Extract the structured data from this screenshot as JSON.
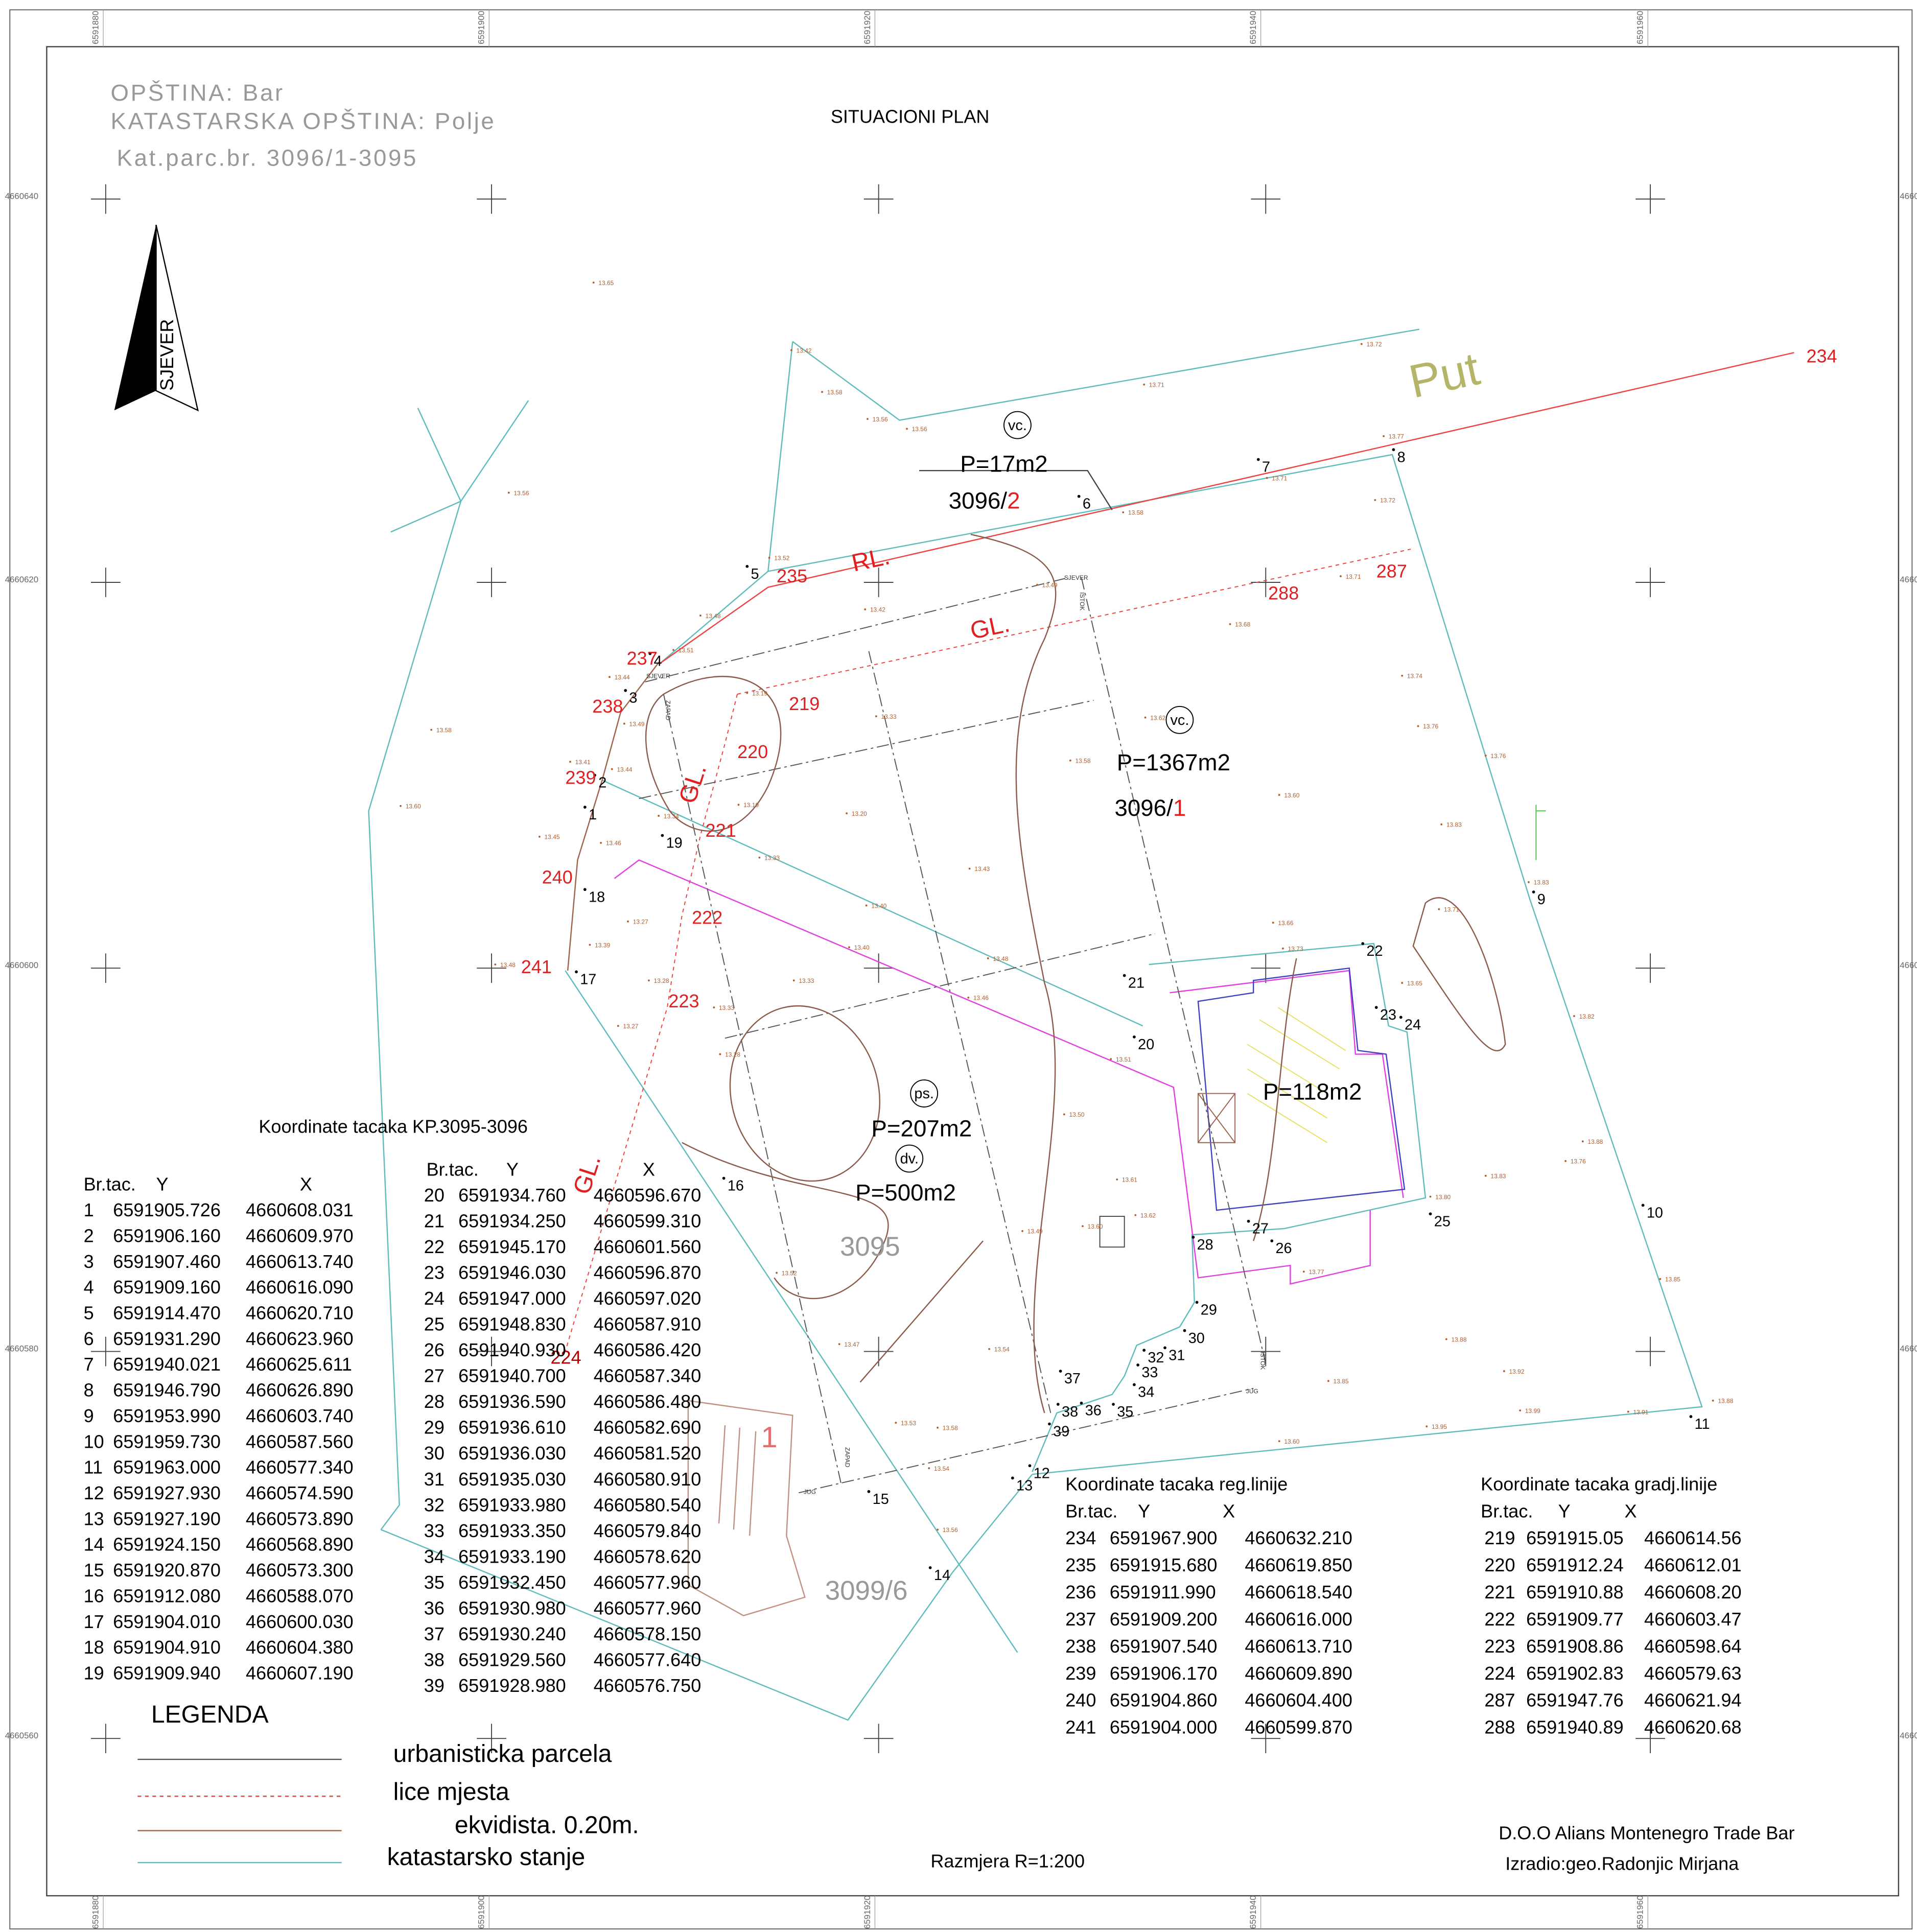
{
  "header": {
    "municipality": "OPŠTINA: Bar",
    "cadastral_municipality": "KATASTARSKA OPŠTINA: Polje",
    "parcel": "Kat.parc.br. 3096/1-3095",
    "title": "SITUACIONI PLAN"
  },
  "north_arrow": "SJEVER",
  "grid": {
    "eastings": [
      "6591880",
      "6591900",
      "6591920",
      "6591940",
      "6591960"
    ],
    "northings": [
      "4660640",
      "4660620",
      "4660600",
      "4660580",
      "4660560"
    ]
  },
  "map": {
    "labels": [
      "Put",
      "vc.",
      "P=17m2",
      "vc.",
      "P=1367m2",
      "ps.",
      "P=207m2",
      "dv.",
      "P=500m2",
      "P=118m2",
      "3095",
      "3099/6",
      "1",
      "RL.",
      "GL.",
      "GL.",
      "GL."
    ],
    "parcel_numbers": [
      {
        "base": "3096/",
        "sub": "2"
      },
      {
        "base": "3096/",
        "sub": "1"
      }
    ],
    "points": [
      "1",
      "2",
      "3",
      "4",
      "5",
      "6",
      "7",
      "8",
      "9",
      "10",
      "11",
      "12",
      "13",
      "14",
      "15",
      "16",
      "17",
      "18",
      "19",
      "20",
      "21",
      "22",
      "23",
      "24",
      "25",
      "26",
      "27",
      "28",
      "29",
      "30",
      "31",
      "32",
      "33",
      "34",
      "35",
      "36",
      "37",
      "38",
      "39"
    ],
    "red_points": [
      "234",
      "235",
      "237",
      "238",
      "239",
      "240",
      "241",
      "219",
      "220",
      "221",
      "222",
      "223",
      "224",
      "287",
      "288"
    ],
    "line_labels": [
      "SJEVER",
      "ZAPAD",
      "SJEVER",
      "ISTOK",
      "ISTOK",
      "JUG",
      "JUG",
      "ZAPAD"
    ],
    "spot_heights": [
      "13.65",
      "13.42",
      "13.58",
      "13.56",
      "13.56",
      "13.71",
      "13.72",
      "13.56",
      "13.77",
      "13.71",
      "13.58",
      "13.72",
      "13.52",
      "13.49",
      "13.42",
      "13.48",
      "13.71",
      "13.68",
      "13.51",
      "13.44",
      "13.19",
      "13.49",
      "13.58",
      "13.33",
      "13.62",
      "13.74",
      "13.76",
      "13.41",
      "13.44",
      "13.19",
      "13.58",
      "13.60",
      "13.76",
      "13.60",
      "13.20",
      "13.34",
      "13.83",
      "13.45",
      "13.46",
      "13.33",
      "13.43",
      "13.40",
      "13.27",
      "13.66",
      "13.83",
      "13.71",
      "13.39",
      "13.40",
      "13.48",
      "13.73",
      "13.48",
      "13.28",
      "13.33",
      "13.65",
      "13.33",
      "13.46",
      "13.27",
      "13.82",
      "13.28",
      "13.51",
      "13.50",
      "13.88",
      "13.61",
      "13.76",
      "13.83",
      "13.80",
      "13.62",
      "13.60",
      "13.49",
      "13.52",
      "13.85",
      "13.77",
      "13.47",
      "13.54",
      "13.88",
      "13.85",
      "13.92",
      "13.99",
      "13.91",
      "13.88",
      "13.53",
      "13.58",
      "13.95",
      "13.60",
      "13.54",
      "13.56"
    ]
  },
  "tables": [
    {
      "title": "Koordinate tacaka KP.3095-3096",
      "columns": [
        "Br.tac.",
        "Y",
        "X"
      ],
      "rows": [
        [
          "1",
          "6591905.726",
          "4660608.031"
        ],
        [
          "2",
          "6591906.160",
          "4660609.970"
        ],
        [
          "3",
          "6591907.460",
          "4660613.740"
        ],
        [
          "4",
          "6591909.160",
          "4660616.090"
        ],
        [
          "5",
          "6591914.470",
          "4660620.710"
        ],
        [
          "6",
          "6591931.290",
          "4660623.960"
        ],
        [
          "7",
          "6591940.021",
          "4660625.611"
        ],
        [
          "8",
          "6591946.790",
          "4660626.890"
        ],
        [
          "9",
          "6591953.990",
          "4660603.740"
        ],
        [
          "10",
          "6591959.730",
          "4660587.560"
        ],
        [
          "11",
          "6591963.000",
          "4660577.340"
        ],
        [
          "12",
          "6591927.930",
          "4660574.590"
        ],
        [
          "13",
          "6591927.190",
          "4660573.890"
        ],
        [
          "14",
          "6591924.150",
          "4660568.890"
        ],
        [
          "15",
          "6591920.870",
          "4660573.300"
        ],
        [
          "16",
          "6591912.080",
          "4660588.070"
        ],
        [
          "17",
          "6591904.010",
          "4660600.030"
        ],
        [
          "18",
          "6591904.910",
          "4660604.380"
        ],
        [
          "19",
          "6591909.940",
          "4660607.190"
        ]
      ]
    },
    {
      "columns": [
        "Br.tac.",
        "Y",
        "X"
      ],
      "rows": [
        [
          "20",
          "6591934.760",
          "4660596.670"
        ],
        [
          "21",
          "6591934.250",
          "4660599.310"
        ],
        [
          "22",
          "6591945.170",
          "4660601.560"
        ],
        [
          "23",
          "6591946.030",
          "4660596.870"
        ],
        [
          "24",
          "6591947.000",
          "4660597.020"
        ],
        [
          "25",
          "6591948.830",
          "4660587.910"
        ],
        [
          "26",
          "6591940.930",
          "4660586.420"
        ],
        [
          "27",
          "6591940.700",
          "4660587.340"
        ],
        [
          "28",
          "6591936.590",
          "4660586.480"
        ],
        [
          "29",
          "6591936.610",
          "4660582.690"
        ],
        [
          "30",
          "6591936.030",
          "4660581.520"
        ],
        [
          "31",
          "6591935.030",
          "4660580.910"
        ],
        [
          "32",
          "6591933.980",
          "4660580.540"
        ],
        [
          "33",
          "6591933.350",
          "4660579.840"
        ],
        [
          "34",
          "6591933.190",
          "4660578.620"
        ],
        [
          "35",
          "6591932.450",
          "4660577.960"
        ],
        [
          "36",
          "6591930.980",
          "4660577.960"
        ],
        [
          "37",
          "6591930.240",
          "4660578.150"
        ],
        [
          "38",
          "6591929.560",
          "4660577.640"
        ],
        [
          "39",
          "6591928.980",
          "4660576.750"
        ]
      ]
    },
    {
      "title": "Koordinate tacaka reg.linije",
      "columns": [
        "Br.tac.",
        "Y",
        "X"
      ],
      "rows": [
        [
          "234",
          "6591967.900",
          "4660632.210"
        ],
        [
          "235",
          "6591915.680",
          "4660619.850"
        ],
        [
          "236",
          "6591911.990",
          "4660618.540"
        ],
        [
          "237",
          "6591909.200",
          "4660616.000"
        ],
        [
          "238",
          "6591907.540",
          "4660613.710"
        ],
        [
          "239",
          "6591906.170",
          "4660609.890"
        ],
        [
          "240",
          "6591904.860",
          "4660604.400"
        ],
        [
          "241",
          "6591904.000",
          "4660599.870"
        ]
      ]
    },
    {
      "title": "Koordinate tacaka gradj.linije",
      "columns": [
        "Br.tac.",
        "Y",
        "X"
      ],
      "rows": [
        [
          "219",
          "6591915.05",
          "4660614.56"
        ],
        [
          "220",
          "6591912.24",
          "4660612.01"
        ],
        [
          "221",
          "6591910.88",
          "4660608.20"
        ],
        [
          "222",
          "6591909.77",
          "4660603.47"
        ],
        [
          "223",
          "6591908.86",
          "4660598.64"
        ],
        [
          "224",
          "6591902.83",
          "4660579.63"
        ],
        [
          "287",
          "6591947.76",
          "4660621.94"
        ],
        [
          "288",
          "6591940.89",
          "4660620.68"
        ]
      ]
    }
  ],
  "legend": {
    "title": "LEGENDA",
    "items": [
      "urbanisticka parcela",
      "lice mjesta",
      "ekvidista. 0.20m.",
      "katastarsko stanje"
    ]
  },
  "footer": {
    "scale": "Razmjera R=1:200",
    "company": "D.O.O Alians Montenegro Trade Bar",
    "author": "Izradio:geo.Radonjic Mirjana"
  }
}
